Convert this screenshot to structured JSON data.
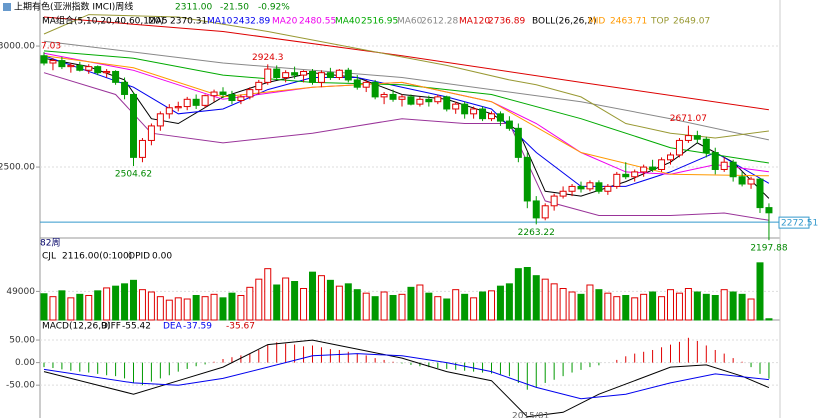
{
  "chart_data": {
    "type": "candlestick",
    "title": "上期有色(亚洲指数 IMCI)周线",
    "last_price": "2311.00",
    "change": "-21.50",
    "change_pct": "-0.92%",
    "ma_group_label": "MA组合(5,10,20,40,60,120)",
    "boll_label": "BOLL(26,26,2)",
    "period_label": "82周",
    "x_label": "2015/01",
    "cut_label": "7.03",
    "ylim": [
      2211,
      3149
    ],
    "yticks": [
      {
        "value": 3000,
        "label": "3000.00"
      },
      {
        "value": 2500,
        "label": "2500.00"
      }
    ],
    "up_color": "#e00000",
    "down_color": "#009900",
    "candles": [
      [
        2960,
        2975,
        2920,
        2930
      ],
      [
        2930,
        2950,
        2900,
        2940
      ],
      [
        2940,
        2955,
        2905,
        2915
      ],
      [
        2915,
        2930,
        2890,
        2920
      ],
      [
        2920,
        2935,
        2895,
        2900
      ],
      [
        2900,
        2925,
        2885,
        2915
      ],
      [
        2915,
        2920,
        2880,
        2890
      ],
      [
        2890,
        2905,
        2870,
        2895
      ],
      [
        2895,
        2900,
        2840,
        2850
      ],
      [
        2850,
        2870,
        2780,
        2800
      ],
      [
        2800,
        2810,
        2504.62,
        2540
      ],
      [
        2540,
        2620,
        2520,
        2610
      ],
      [
        2610,
        2680,
        2590,
        2670
      ],
      [
        2670,
        2730,
        2650,
        2720
      ],
      [
        2720,
        2760,
        2700,
        2745
      ],
      [
        2745,
        2770,
        2730,
        2750
      ],
      [
        2750,
        2790,
        2735,
        2780
      ],
      [
        2780,
        2800,
        2740,
        2755
      ],
      [
        2755,
        2800,
        2745,
        2795
      ],
      [
        2795,
        2820,
        2770,
        2810
      ],
      [
        2810,
        2830,
        2785,
        2800
      ],
      [
        2800,
        2815,
        2760,
        2775
      ],
      [
        2775,
        2800,
        2760,
        2790
      ],
      [
        2790,
        2830,
        2780,
        2820
      ],
      [
        2820,
        2860,
        2800,
        2850
      ],
      [
        2850,
        2924.3,
        2840,
        2905
      ],
      [
        2905,
        2920,
        2860,
        2870
      ],
      [
        2870,
        2900,
        2850,
        2890
      ],
      [
        2890,
        2915,
        2865,
        2880
      ],
      [
        2880,
        2900,
        2850,
        2895
      ],
      [
        2895,
        2905,
        2840,
        2850
      ],
      [
        2850,
        2900,
        2830,
        2890
      ],
      [
        2890,
        2910,
        2860,
        2870
      ],
      [
        2870,
        2905,
        2860,
        2900
      ],
      [
        2900,
        2910,
        2850,
        2860
      ],
      [
        2860,
        2880,
        2820,
        2830
      ],
      [
        2830,
        2860,
        2810,
        2850
      ],
      [
        2850,
        2860,
        2780,
        2790
      ],
      [
        2790,
        2810,
        2760,
        2800
      ],
      [
        2800,
        2820,
        2770,
        2780
      ],
      [
        2780,
        2800,
        2750,
        2790
      ],
      [
        2790,
        2800,
        2755,
        2760
      ],
      [
        2760,
        2790,
        2750,
        2780
      ],
      [
        2780,
        2795,
        2750,
        2770
      ],
      [
        2770,
        2800,
        2760,
        2790
      ],
      [
        2790,
        2795,
        2730,
        2740
      ],
      [
        2740,
        2770,
        2720,
        2760
      ],
      [
        2760,
        2770,
        2700,
        2720
      ],
      [
        2720,
        2750,
        2700,
        2740
      ],
      [
        2740,
        2750,
        2690,
        2700
      ],
      [
        2700,
        2730,
        2690,
        2720
      ],
      [
        2720,
        2730,
        2670,
        2690
      ],
      [
        2690,
        2710,
        2650,
        2660
      ],
      [
        2660,
        2680,
        2520,
        2540
      ],
      [
        2540,
        2560,
        2330,
        2360
      ],
      [
        2360,
        2380,
        2263.22,
        2290
      ],
      [
        2290,
        2350,
        2280,
        2340
      ],
      [
        2340,
        2390,
        2320,
        2380
      ],
      [
        2380,
        2420,
        2370,
        2400
      ],
      [
        2400,
        2430,
        2380,
        2420
      ],
      [
        2420,
        2440,
        2395,
        2410
      ],
      [
        2410,
        2445,
        2400,
        2435
      ],
      [
        2435,
        2445,
        2390,
        2400
      ],
      [
        2400,
        2430,
        2385,
        2420
      ],
      [
        2420,
        2480,
        2410,
        2470
      ],
      [
        2470,
        2520,
        2450,
        2460
      ],
      [
        2460,
        2490,
        2440,
        2480
      ],
      [
        2480,
        2510,
        2460,
        2500
      ],
      [
        2500,
        2530,
        2480,
        2490
      ],
      [
        2490,
        2540,
        2480,
        2530
      ],
      [
        2530,
        2560,
        2510,
        2550
      ],
      [
        2550,
        2620,
        2540,
        2610
      ],
      [
        2610,
        2671.07,
        2600,
        2630
      ],
      [
        2630,
        2650,
        2600,
        2615
      ],
      [
        2615,
        2625,
        2540,
        2560
      ],
      [
        2560,
        2580,
        2470,
        2490
      ],
      [
        2490,
        2540,
        2480,
        2520
      ],
      [
        2520,
        2530,
        2440,
        2460
      ],
      [
        2460,
        2480,
        2420,
        2430
      ],
      [
        2430,
        2460,
        2410,
        2450
      ],
      [
        2450,
        2455,
        2310,
        2332.5
      ],
      [
        2332.5,
        2350,
        2197.88,
        2311
      ]
    ],
    "annotations": [
      2924.3,
      2504.62,
      2263.22,
      2671.07,
      2197.88
    ],
    "price_line": 2272.51,
    "price_line_color": "#3399cc",
    "lines": [
      {
        "name": "MA5",
        "color": "#000000",
        "x": [
          0,
          5,
          9,
          12,
          15,
          20,
          25,
          30,
          35,
          40,
          45,
          50,
          53,
          56,
          60,
          65,
          70,
          73,
          77,
          81
        ],
        "values": [
          2950,
          2915,
          2860,
          2700,
          2680,
          2790,
          2850,
          2890,
          2870,
          2800,
          2780,
          2720,
          2650,
          2400,
          2380,
          2440,
          2520,
          2600,
          2520,
          2370.31
        ]
      },
      {
        "name": "MA10",
        "color": "#0000ee",
        "x": [
          0,
          10,
          15,
          20,
          25,
          30,
          35,
          40,
          45,
          50,
          55,
          60,
          65,
          70,
          75,
          81
        ],
        "values": [
          2960,
          2830,
          2720,
          2740,
          2820,
          2870,
          2870,
          2830,
          2790,
          2740,
          2560,
          2420,
          2420,
          2480,
          2560,
          2432.89
        ]
      },
      {
        "name": "MA20",
        "color": "#ee00ee",
        "x": [
          0,
          10,
          20,
          30,
          40,
          50,
          55,
          60,
          65,
          70,
          75,
          81
        ],
        "values": [
          2970,
          2900,
          2780,
          2830,
          2850,
          2770,
          2680,
          2560,
          2480,
          2470,
          2510,
          2480.55
        ]
      },
      {
        "name": "MA40",
        "color": "#00aa00",
        "x": [
          0,
          10,
          20,
          30,
          40,
          50,
          60,
          70,
          81
        ],
        "values": [
          2980,
          2950,
          2880,
          2850,
          2840,
          2800,
          2700,
          2580,
          2516.95
        ]
      },
      {
        "name": "MA60",
        "color": "#888888",
        "x": [
          0,
          20,
          40,
          60,
          70,
          81
        ],
        "values": [
          3020,
          2930,
          2870,
          2770,
          2700,
          2612.28
        ]
      },
      {
        "name": "MA120",
        "color": "#dd0000",
        "x": [
          0,
          20,
          40,
          60,
          81
        ],
        "values": [
          3120,
          3060,
          2960,
          2850,
          2736.89
        ]
      },
      {
        "name": "MID",
        "color": "#ff9900",
        "x": [
          0,
          10,
          20,
          30,
          40,
          50,
          60,
          70,
          81
        ],
        "values": [
          2960,
          2910,
          2790,
          2830,
          2850,
          2770,
          2560,
          2470,
          2463.71
        ]
      },
      {
        "name": "TOP",
        "color": "#999933",
        "x": [
          0,
          5,
          15,
          25,
          35,
          45,
          52,
          55,
          60,
          65,
          70,
          75,
          81
        ],
        "values": [
          3050,
          3130,
          3120,
          3060,
          2990,
          2920,
          2860,
          2840,
          2790,
          2680,
          2640,
          2620,
          2649.07
        ]
      },
      {
        "color": "#993399",
        "x": [
          0,
          8,
          12,
          20,
          30,
          40,
          47,
          52,
          56,
          62,
          70,
          76,
          81
        ],
        "values": [
          2890,
          2800,
          2640,
          2600,
          2640,
          2700,
          2680,
          2680,
          2360,
          2300,
          2300,
          2310,
          2280
        ]
      }
    ],
    "volume": {
      "name": "CJL",
      "label": "2116.00(0:100)",
      "opid_name": "OPID",
      "opid": "0.00",
      "ylim": [
        0,
        120000
      ],
      "yticks": [
        49000
      ],
      "values": [
        45000,
        40000,
        50000,
        38000,
        44000,
        42000,
        50000,
        55000,
        58000,
        62000,
        68000,
        52000,
        48000,
        40000,
        34000,
        38000,
        36000,
        42000,
        40000,
        44000,
        38000,
        46000,
        42000,
        56000,
        70000,
        88000,
        60000,
        72000,
        66000,
        54000,
        82000,
        76000,
        68000,
        58000,
        62000,
        52000,
        46000,
        40000,
        48000,
        42000,
        44000,
        56000,
        60000,
        46000,
        40000,
        36000,
        52000,
        44000,
        38000,
        48000,
        50000,
        58000,
        62000,
        88000,
        90000,
        76000,
        70000,
        62000,
        54000,
        48000,
        44000,
        60000,
        52000,
        46000,
        40000,
        42000,
        38000,
        44000,
        48000,
        40000,
        52000,
        46000,
        54000,
        48000,
        44000,
        42000,
        52000,
        48000,
        44000,
        36000,
        98000,
        2116
      ]
    },
    "macd": {
      "name": "MACD(12,26,9)",
      "ylim": [
        -105,
        90
      ],
      "yticks": [
        {
          "value": 50,
          "label": "50.00"
        },
        {
          "value": 0,
          "label": "0.00"
        },
        {
          "value": -50,
          "label": "-50.00"
        }
      ],
      "values": [
        -10,
        -12,
        -15,
        -18,
        -20,
        -22,
        -25,
        -28,
        -30,
        -35,
        -45,
        -50,
        -42,
        -35,
        -28,
        -20,
        -14,
        -8,
        -4,
        2,
        8,
        12,
        16,
        20,
        28,
        40,
        45,
        42,
        40,
        36,
        38,
        34,
        30,
        28,
        24,
        20,
        16,
        10,
        6,
        2,
        -2,
        -5,
        -8,
        -10,
        -12,
        -14,
        -16,
        -18,
        -20,
        -22,
        -24,
        -26,
        -30,
        -45,
        -60,
        -55,
        -45,
        -38,
        -30,
        -22,
        -16,
        -10,
        -6,
        0,
        6,
        14,
        20,
        24,
        28,
        34,
        40,
        46,
        55,
        48,
        38,
        28,
        20,
        10,
        2,
        -10,
        -25,
        -35.67
      ],
      "diff": {
        "name": "DIFF",
        "color": "#000000",
        "x": [
          0,
          10,
          15,
          20,
          25,
          30,
          35,
          40,
          45,
          50,
          54,
          58,
          62,
          66,
          70,
          74,
          78,
          81
        ],
        "values": [
          -20,
          -70,
          -40,
          -10,
          40,
          50,
          30,
          10,
          -20,
          -40,
          -120,
          -110,
          -70,
          -40,
          -10,
          -5,
          -30,
          -55.42
        ]
      },
      "dea": {
        "name": "DEA",
        "color": "#0000ee",
        "x": [
          0,
          10,
          15,
          20,
          25,
          30,
          35,
          40,
          45,
          50,
          55,
          60,
          65,
          70,
          75,
          81
        ],
        "values": [
          -15,
          -45,
          -50,
          -35,
          -10,
          15,
          20,
          15,
          0,
          -20,
          -55,
          -80,
          -70,
          -45,
          -25,
          -37.59
        ]
      }
    }
  }
}
